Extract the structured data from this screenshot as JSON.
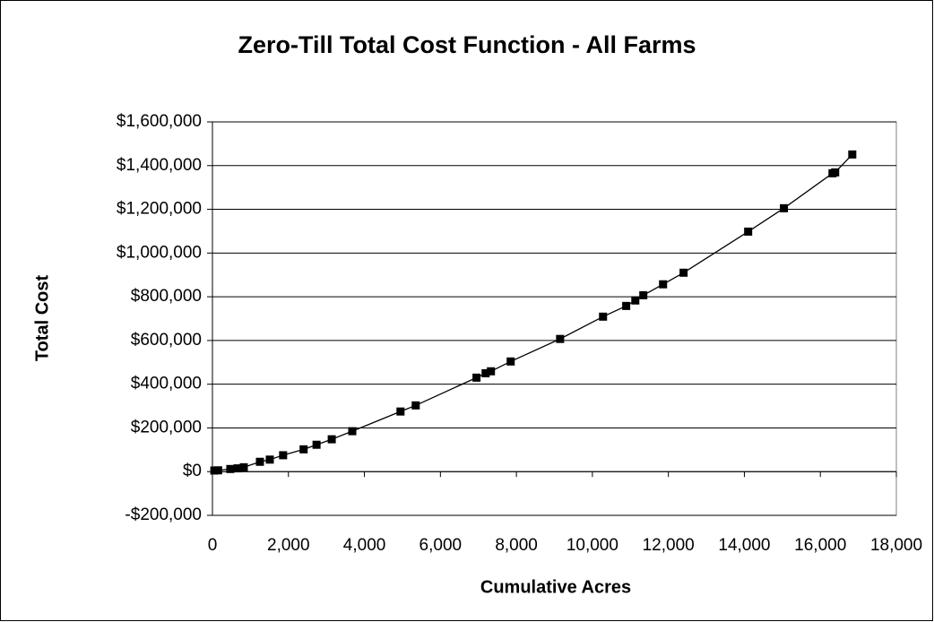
{
  "chart_data": {
    "type": "scatter",
    "title": "Zero-Till Total Cost Function - All Farms",
    "x_label": "Cumulative Acres",
    "y_label": "Total Cost",
    "series": [
      {
        "color": "#000000",
        "x": [
          50,
          150,
          470,
          660,
          825,
          1250,
          1510,
          1860,
          2400,
          2740,
          3140,
          3680,
          4950,
          5350,
          6950,
          7190,
          7330,
          7850,
          9150,
          10280,
          10890,
          11130,
          11340,
          11860,
          12400,
          14100,
          15040,
          16320,
          16390,
          16840
        ],
        "values": [
          5000,
          6000,
          12000,
          15000,
          20000,
          45000,
          55000,
          75000,
          102000,
          123000,
          148000,
          185000,
          275000,
          303000,
          430000,
          450000,
          459000,
          504000,
          607000,
          709000,
          758000,
          783000,
          807000,
          857000,
          910000,
          1098000,
          1205000,
          1365000,
          1369000,
          1451000
        ]
      }
    ],
    "xlim": [
      0,
      18000
    ],
    "xticks": [
      0,
      {
        "value": 2000,
        "label": "2,000"
      },
      {
        "value": 4000,
        "label": "4,000"
      },
      {
        "value": 6000,
        "label": "6,000"
      },
      {
        "value": 8000,
        "label": "8,000"
      },
      {
        "value": 10000,
        "label": "10,000"
      },
      {
        "value": 12000,
        "label": "12,000"
      },
      {
        "value": 14000,
        "label": "14,000"
      },
      {
        "value": 16000,
        "label": "16,000"
      },
      {
        "value": 18000,
        "label": "18,000"
      }
    ],
    "ylim": [
      -200000,
      1600000
    ],
    "yticks": [
      {
        "value": -200000,
        "label": "-$200,000"
      },
      {
        "value": 0,
        "label": "$0"
      },
      {
        "value": 200000,
        "label": "$200,000"
      },
      {
        "value": 400000,
        "label": "$400,000"
      },
      {
        "value": 600000,
        "label": "$600,000"
      },
      {
        "value": 800000,
        "label": "$800,000"
      },
      {
        "value": 1000000,
        "label": "$1,000,000"
      },
      {
        "value": 1200000,
        "label": "$1,200,000"
      },
      {
        "value": 1400000,
        "label": "$1,400,000"
      },
      {
        "value": 1600000,
        "label": "$1,600,000"
      }
    ],
    "grid": true
  }
}
